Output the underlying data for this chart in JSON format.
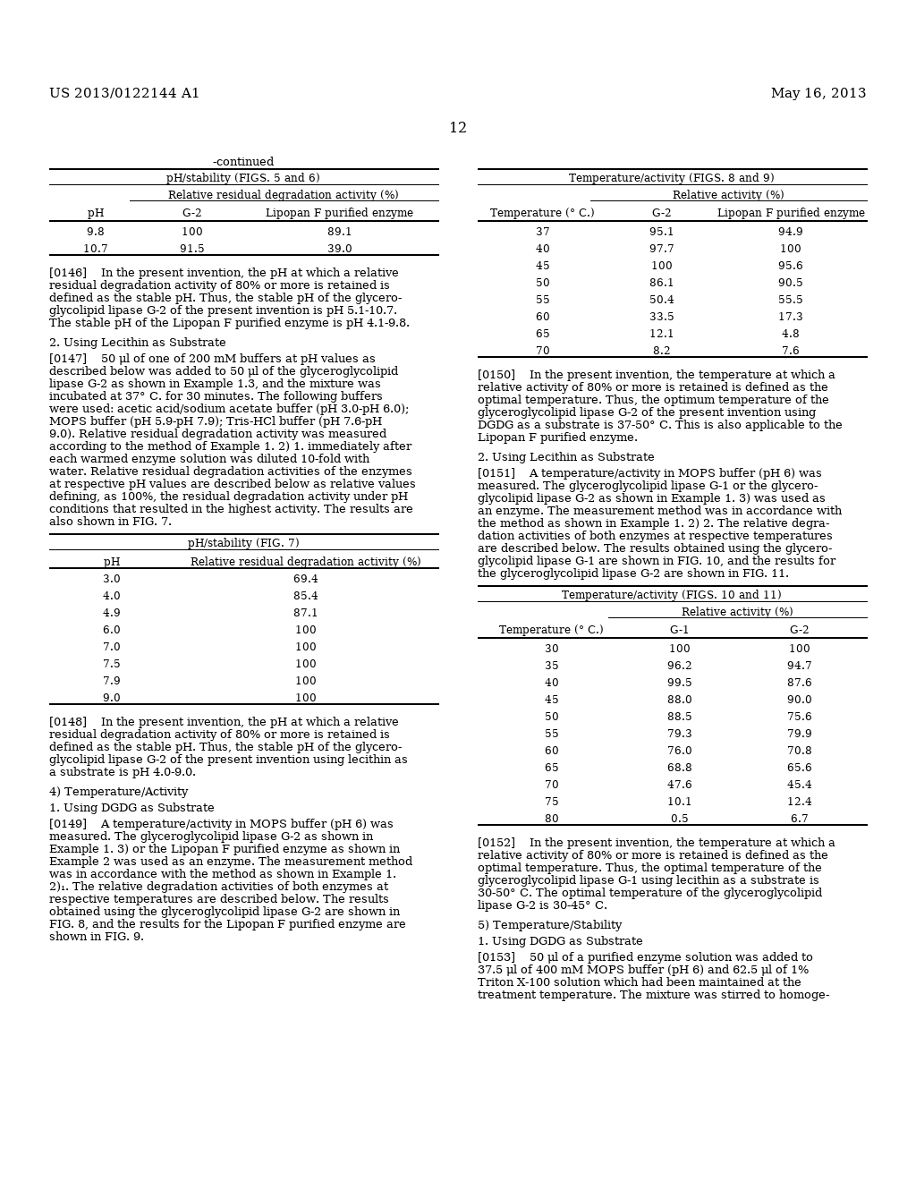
{
  "header_left": "US 2013/0122144 A1",
  "header_right": "May 16, 2013",
  "page_number": "12",
  "background_color": "#ffffff",
  "table1_title": "pH/stability (FIGS. 5 and 6)",
  "table1_subtitle": "Relative residual degradation activity (%)",
  "table1_col1": "pH",
  "table1_col2": "G-2",
  "table1_col3": "Lipopan F purified enzyme",
  "table1_data": [
    [
      "9.8",
      "100",
      "89.1"
    ],
    [
      "10.7",
      "91.5",
      "39.0"
    ]
  ],
  "table2_title": "Temperature/activity (FIGS. 8 and 9)",
  "table2_subtitle": "Relative activity (%)",
  "table2_col1": "Temperature (° C.)",
  "table2_col2": "G-2",
  "table2_col3": "Lipopan F purified enzyme",
  "table2_data": [
    [
      "37",
      "95.1",
      "94.9"
    ],
    [
      "40",
      "97.7",
      "100"
    ],
    [
      "45",
      "100",
      "95.6"
    ],
    [
      "50",
      "86.1",
      "90.5"
    ],
    [
      "55",
      "50.4",
      "55.5"
    ],
    [
      "60",
      "33.5",
      "17.3"
    ],
    [
      "65",
      "12.1",
      "4.8"
    ],
    [
      "70",
      "8.2",
      "7.6"
    ]
  ],
  "table3_title": "pH/stability (FIG. 7)",
  "table3_col1": "pH",
  "table3_col2": "Relative residual degradation activity (%)",
  "table3_data": [
    [
      "3.0",
      "69.4"
    ],
    [
      "4.0",
      "85.4"
    ],
    [
      "4.9",
      "87.1"
    ],
    [
      "6.0",
      "100"
    ],
    [
      "7.0",
      "100"
    ],
    [
      "7.5",
      "100"
    ],
    [
      "7.9",
      "100"
    ],
    [
      "9.0",
      "100"
    ]
  ],
  "table4_title": "Temperature/activity (FIGS. 10 and 11)",
  "table4_subtitle": "Relative activity (%)",
  "table4_col1": "Temperature (° C.)",
  "table4_col2": "G-1",
  "table4_col3": "G-2",
  "table4_data": [
    [
      "30",
      "100",
      "100"
    ],
    [
      "35",
      "96.2",
      "94.7"
    ],
    [
      "40",
      "99.5",
      "87.6"
    ],
    [
      "45",
      "88.0",
      "90.0"
    ],
    [
      "50",
      "88.5",
      "75.6"
    ],
    [
      "55",
      "79.3",
      "79.9"
    ],
    [
      "60",
      "76.0",
      "70.8"
    ],
    [
      "65",
      "68.8",
      "65.6"
    ],
    [
      "70",
      "47.6",
      "45.4"
    ],
    [
      "75",
      "10.1",
      "12.4"
    ],
    [
      "80",
      "0.5",
      "6.7"
    ]
  ],
  "p146_lines": [
    "[0146]    In the present invention, the pH at which a relative",
    "residual degradation activity of 80% or more is retained is",
    "defined as the stable pH. Thus, the stable pH of the glycero-",
    "glycolipid lipase G-2 of the present invention is pH 5.1-10.7.",
    "The stable pH of the Lipopan F purified enzyme is pH 4.1-9.8."
  ],
  "heading_lecithin1": "2. Using Lecithin as Substrate",
  "p147_lines": [
    "[0147]    50 μl of one of 200 mM buffers at pH values as",
    "described below was added to 50 μl of the glyceroglycolipid",
    "lipase G-2 as shown in Example 1.3, and the mixture was",
    "incubated at 37° C. for 30 minutes. The following buffers",
    "were used: acetic acid/sodium acetate buffer (pH 3.0-pH 6.0);",
    "MOPS buffer (pH 5.9-pH 7.9); Tris-HCl buffer (pH 7.6-pH",
    "9.0). Relative residual degradation activity was measured",
    "according to the method of Example 1. 2) 1. immediately after",
    "each warmed enzyme solution was diluted 10-fold with",
    "water. Relative residual degradation activities of the enzymes",
    "at respective pH values are described below as relative values",
    "defining, as 100%, the residual degradation activity under pH",
    "conditions that resulted in the highest activity. The results are",
    "also shown in FIG. 7."
  ],
  "p148_lines": [
    "[0148]    In the present invention, the pH at which a relative",
    "residual degradation activity of 80% or more is retained is",
    "defined as the stable pH. Thus, the stable pH of the glycero-",
    "glycolipid lipase G-2 of the present invention using lecithin as",
    "a substrate is pH 4.0-9.0."
  ],
  "heading_temp_act": "4) Temperature/Activity",
  "heading_dgdg1": "1. Using DGDG as Substrate",
  "p149_lines": [
    "[0149]    A temperature/activity in MOPS buffer (pH 6) was",
    "measured. The glyceroglycolipid lipase G-2 as shown in",
    "Example 1. 3) or the Lipopan F purified enzyme as shown in",
    "Example 2 was used as an enzyme. The measurement method",
    "was in accordance with the method as shown in Example 1.",
    "2)₁. The relative degradation activities of both enzymes at",
    "respective temperatures are described below. The results",
    "obtained using the glyceroglycolipid lipase G-2 are shown in",
    "FIG. 8, and the results for the Lipopan F purified enzyme are",
    "shown in FIG. 9."
  ],
  "p150_lines": [
    "[0150]    In the present invention, the temperature at which a",
    "relative activity of 80% or more is retained is defined as the",
    "optimal temperature. Thus, the optimum temperature of the",
    "glyceroglycolipid lipase G-2 of the present invention using",
    "DGDG as a substrate is 37-50° C. This is also applicable to the",
    "Lipopan F purified enzyme."
  ],
  "heading_lecithin2": "2. Using Lecithin as Substrate",
  "p151_lines": [
    "[0151]    A temperature/activity in MOPS buffer (pH 6) was",
    "measured. The glyceroglycolipid lipase G-1 or the glycero-",
    "glycolipid lipase G-2 as shown in Example 1. 3) was used as",
    "an enzyme. The measurement method was in accordance with",
    "the method as shown in Example 1. 2) 2. The relative degra-",
    "dation activities of both enzymes at respective temperatures",
    "are described below. The results obtained using the glycero-",
    "glycolipid lipase G-1 are shown in FIG. 10, and the results for",
    "the glyceroglycolipid lipase G-2 are shown in FIG. 11."
  ],
  "p152_lines": [
    "[0152]    In the present invention, the temperature at which a",
    "relative activity of 80% or more is retained is defined as the",
    "optimal temperature. Thus, the optimal temperature of the",
    "glyceroglycolipid lipase G-1 using lecithin as a substrate is",
    "30-50° C. The optimal temperature of the glyceroglycolipid",
    "lipase G-2 is 30-45° C."
  ],
  "heading_temp_stab": "5) Temperature/Stability",
  "heading_dgdg2": "1. Using DGDG as Substrate",
  "p153_lines": [
    "[0153]    50 μl of a purified enzyme solution was added to",
    "37.5 μl of 400 mM MOPS buffer (pH 6) and 62.5 μl of 1%",
    "Triton X-100 solution which had been maintained at the",
    "treatment temperature. The mixture was stirred to homoge-"
  ]
}
